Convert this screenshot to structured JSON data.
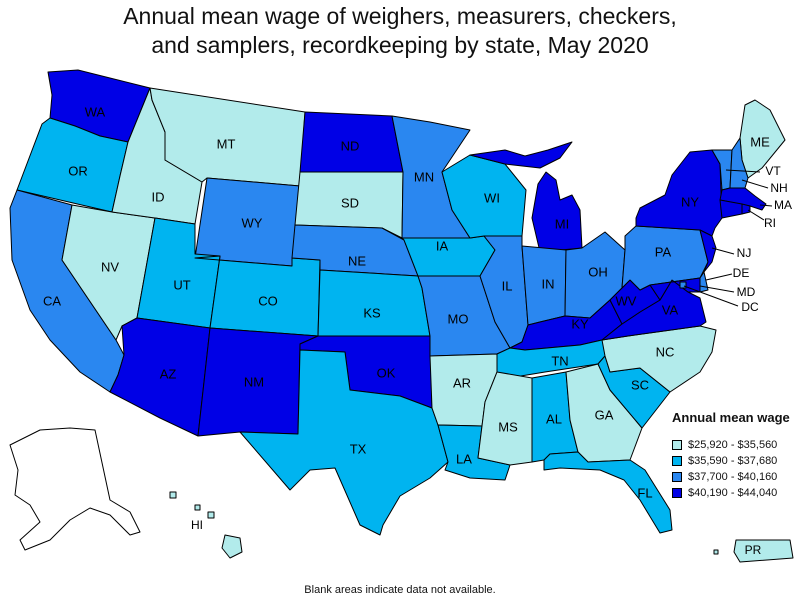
{
  "title": {
    "line1": "Annual mean wage of weighers, measurers, checkers,",
    "line2": "and samplers, recordkeeping by state, May 2020"
  },
  "legend": {
    "title": "Annual mean wage",
    "bins": [
      {
        "label": "$25,920 - $35,560",
        "color": "#b2ebeb"
      },
      {
        "label": "$35,590 - $37,680",
        "color": "#00b4f0"
      },
      {
        "label": "$37,700 - $40,160",
        "color": "#2a87f0"
      },
      {
        "label": "$40,190 - $44,040",
        "color": "#0000e6"
      }
    ]
  },
  "footnote": "Blank areas indicate data not available.",
  "states": {
    "WA": 3,
    "OR": 1,
    "CA": 2,
    "NV": 0,
    "ID": 0,
    "MT": 0,
    "WY": 2,
    "UT": 1,
    "AZ": 3,
    "CO": 1,
    "NM": 3,
    "ND": 3,
    "SD": 0,
    "NE": 2,
    "KS": 1,
    "OK": 3,
    "TX": 1,
    "MN": 2,
    "IA": 1,
    "MO": 2,
    "AR": 0,
    "LA": 1,
    "WI": 1,
    "IL": 2,
    "MI": 3,
    "IN": 2,
    "OH": 2,
    "KY": 3,
    "TN": 1,
    "MS": 0,
    "AL": 1,
    "GA": 0,
    "FL": 1,
    "SC": 1,
    "NC": 0,
    "VA": 3,
    "WV": 3,
    "PA": 2,
    "NY": 3,
    "ME": 0,
    "VT": 2,
    "NH": 2,
    "MA": 3,
    "RI": 3,
    "CT": 3,
    "NJ": 3,
    "DE": 2,
    "MD": 3,
    "DC": 2,
    "AK": -1,
    "HI": 0,
    "PR": 0
  },
  "labels": {
    "WA": "WA",
    "OR": "OR",
    "CA": "CA",
    "NV": "NV",
    "ID": "ID",
    "MT": "MT",
    "WY": "WY",
    "UT": "UT",
    "AZ": "AZ",
    "CO": "CO",
    "NM": "NM",
    "ND": "ND",
    "SD": "SD",
    "NE": "NE",
    "KS": "KS",
    "OK": "OK",
    "TX": "TX",
    "MN": "MN",
    "IA": "IA",
    "MO": "MO",
    "AR": "AR",
    "LA": "LA",
    "WI": "WI",
    "IL": "IL",
    "MI": "MI",
    "IN": "IN",
    "OH": "OH",
    "KY": "KY",
    "TN": "TN",
    "MS": "MS",
    "AL": "AL",
    "GA": "GA",
    "FL": "FL",
    "SC": "SC",
    "NC": "NC",
    "VA": "VA",
    "WV": "WV",
    "PA": "PA",
    "NY": "NY",
    "ME": "ME",
    "VT": "VT",
    "NH": "NH",
    "MA": "MA",
    "RI": "RI",
    "NJ": "NJ",
    "DE": "DE",
    "MD": "MD",
    "DC": "DC",
    "HI": "HI",
    "PR": "PR"
  }
}
